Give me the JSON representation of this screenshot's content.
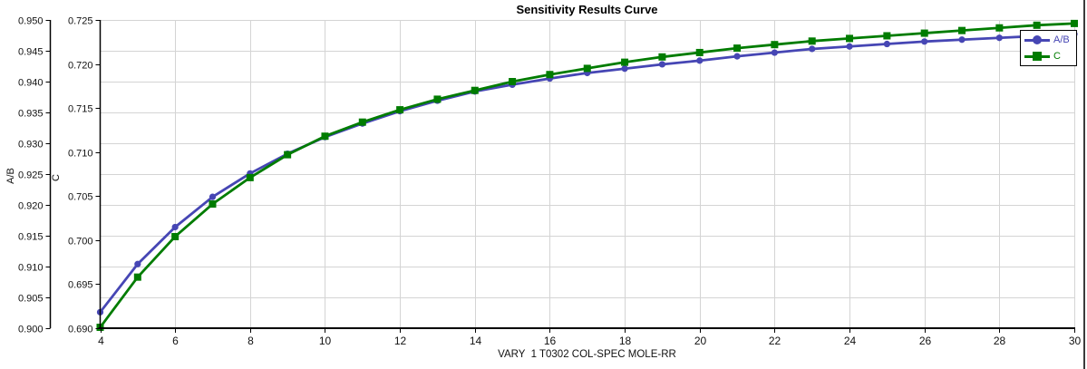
{
  "title": "Sensitivity Results Curve",
  "chart_data": {
    "type": "line",
    "title": "Sensitivity Results Curve",
    "xlabel": "VARY  1 T0302 COL-SPEC MOLE-RR",
    "grid": true,
    "legend_position": "top-right",
    "x": [
      4,
      5,
      6,
      7,
      8,
      9,
      10,
      11,
      12,
      13,
      14,
      15,
      16,
      17,
      18,
      19,
      20,
      21,
      22,
      23,
      24,
      25,
      26,
      27,
      28,
      29,
      30
    ],
    "x_ticks": [
      4,
      6,
      8,
      10,
      12,
      14,
      16,
      18,
      20,
      22,
      24,
      26,
      28,
      30
    ],
    "xlim": [
      4,
      30
    ],
    "axes": [
      {
        "id": "AB",
        "label": "A/B",
        "lim": [
          0.9,
          0.95
        ],
        "tick_step": 0.005,
        "tick_decimals": 3
      },
      {
        "id": "C",
        "label": "C",
        "lim": [
          0.69,
          0.725
        ],
        "tick_step": 0.005,
        "tick_decimals": 3
      }
    ],
    "series": [
      {
        "name": "A/B",
        "axis": "AB",
        "color": "#4646b4",
        "marker": "circle",
        "values": [
          0.9026,
          0.9104,
          0.9164,
          0.9213,
          0.9251,
          0.9283,
          0.931,
          0.9332,
          0.9352,
          0.9369,
          0.9384,
          0.9395,
          0.9405,
          0.9414,
          0.9421,
          0.9428,
          0.9434,
          0.9441,
          0.9447,
          0.9453,
          0.9457,
          0.9461,
          0.9465,
          0.9468,
          0.9471,
          0.9474,
          0.9477
        ]
      },
      {
        "name": "C",
        "axis": "C",
        "color": "#007c00",
        "marker": "square",
        "values": [
          0.6901,
          0.6958,
          0.7004,
          0.7041,
          0.7071,
          0.7097,
          0.7118,
          0.7134,
          0.7148,
          0.716,
          0.717,
          0.718,
          0.7188,
          0.7195,
          0.7202,
          0.7208,
          0.7213,
          0.7218,
          0.7222,
          0.7226,
          0.7229,
          0.7232,
          0.7235,
          0.7238,
          0.7241,
          0.7244,
          0.7246
        ]
      }
    ],
    "colors": {
      "grid": "#d4d4d4",
      "axis": "#000000",
      "tick_text": "#111111"
    }
  }
}
